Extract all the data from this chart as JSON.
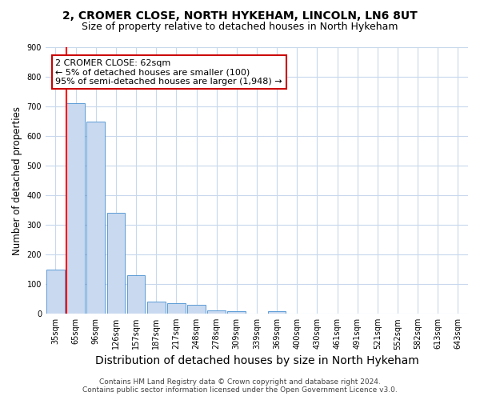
{
  "title_line1": "2, CROMER CLOSE, NORTH HYKEHAM, LINCOLN, LN6 8UT",
  "title_line2": "Size of property relative to detached houses in North Hykeham",
  "xlabel": "Distribution of detached houses by size in North Hykeham",
  "ylabel": "Number of detached properties",
  "categories": [
    "35sqm",
    "65sqm",
    "96sqm",
    "126sqm",
    "157sqm",
    "187sqm",
    "217sqm",
    "248sqm",
    "278sqm",
    "309sqm",
    "339sqm",
    "369sqm",
    "400sqm",
    "430sqm",
    "461sqm",
    "491sqm",
    "521sqm",
    "552sqm",
    "582sqm",
    "613sqm",
    "643sqm"
  ],
  "values": [
    150,
    710,
    650,
    340,
    130,
    40,
    35,
    30,
    10,
    8,
    0,
    8,
    0,
    0,
    0,
    0,
    0,
    0,
    0,
    0,
    0
  ],
  "bar_color": "#c9d9f0",
  "bar_edge_color": "#5b9bd5",
  "red_line_index": 1,
  "annotation_line1": "2 CROMER CLOSE: 62sqm",
  "annotation_line2": "← 5% of detached houses are smaller (100)",
  "annotation_line3": "95% of semi-detached houses are larger (1,948) →",
  "annotation_box_color": "#ffffff",
  "annotation_box_edge": "#cc0000",
  "ylim": [
    0,
    900
  ],
  "yticks": [
    0,
    100,
    200,
    300,
    400,
    500,
    600,
    700,
    800,
    900
  ],
  "footer_line1": "Contains HM Land Registry data © Crown copyright and database right 2024.",
  "footer_line2": "Contains public sector information licensed under the Open Government Licence v3.0.",
  "bg_color": "#ffffff",
  "grid_color": "#c8d8ec",
  "title1_fontsize": 10,
  "title2_fontsize": 9,
  "xlabel_fontsize": 10,
  "ylabel_fontsize": 8.5,
  "tick_fontsize": 7,
  "annotation_fontsize": 8,
  "footer_fontsize": 6.5
}
